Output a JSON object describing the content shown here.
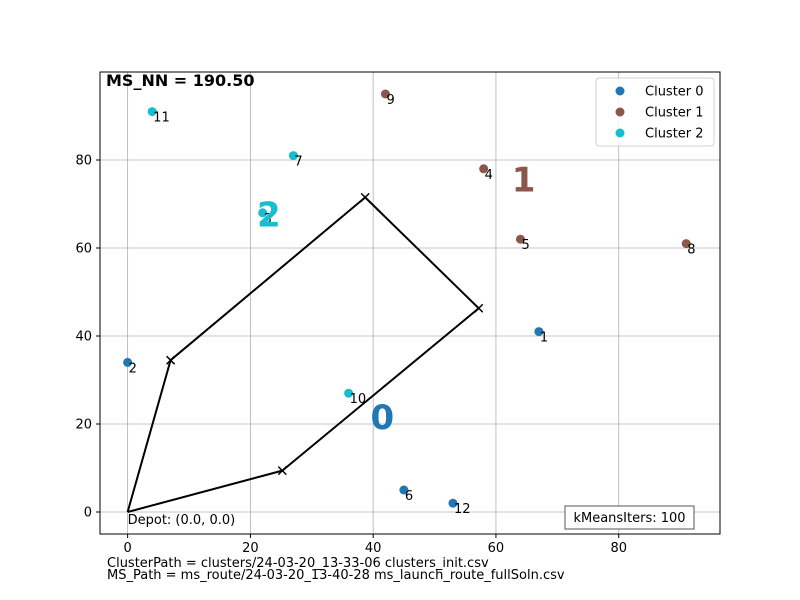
{
  "chart_data": {
    "type": "scatter",
    "title": "",
    "xlabel": "",
    "ylabel": "",
    "xlim": [
      -4.5,
      96.5
    ],
    "ylim": [
      -5,
      100
    ],
    "xticks": [
      0,
      20,
      40,
      60,
      80
    ],
    "yticks": [
      0,
      20,
      40,
      60,
      80
    ],
    "grid": true,
    "legend_position": "top-right",
    "series": [
      {
        "name": "Cluster 0",
        "color": "#1f77b4",
        "points": [
          {
            "x": 67,
            "y": 41,
            "label": "1"
          },
          {
            "x": 0,
            "y": 34,
            "label": "2"
          },
          {
            "x": 45,
            "y": 5,
            "label": "6"
          },
          {
            "x": 53,
            "y": 2,
            "label": "12"
          }
        ]
      },
      {
        "name": "Cluster 1",
        "color": "#8c564b",
        "points": [
          {
            "x": 58,
            "y": 78,
            "label": "4"
          },
          {
            "x": 64,
            "y": 62,
            "label": "5"
          },
          {
            "x": 91,
            "y": 61,
            "label": "8"
          },
          {
            "x": 42,
            "y": 95,
            "label": "9"
          }
        ]
      },
      {
        "name": "Cluster 2",
        "color": "#17becf",
        "points": [
          {
            "x": 22,
            "y": 68,
            "label": "3"
          },
          {
            "x": 27,
            "y": 81,
            "label": "7"
          },
          {
            "x": 36,
            "y": 27,
            "label": "10"
          },
          {
            "x": 4,
            "y": 91,
            "label": "11"
          }
        ]
      }
    ],
    "cluster_centroids": [
      {
        "label": "0",
        "x": 41.5,
        "y": 21,
        "color": "#1f77b4"
      },
      {
        "label": "1",
        "x": 64.5,
        "y": 75,
        "color": "#8c564b"
      },
      {
        "label": "2",
        "x": 23,
        "y": 67,
        "color": "#17becf"
      }
    ],
    "route": [
      {
        "x": 0,
        "y": 0
      },
      {
        "x": 7,
        "y": 34.5
      },
      {
        "x": 38.7,
        "y": 71.5
      },
      {
        "x": 57.2,
        "y": 46.3
      },
      {
        "x": 25.2,
        "y": 9.4
      },
      {
        "x": 0,
        "y": 0
      }
    ],
    "annotations": {
      "ms_nn": "MS_NN = 190.50",
      "depot": "Depot: (0.0, 0.0)",
      "kmeans_iters": "kMeansIters: 100"
    }
  },
  "footer": {
    "cluster_path": "ClusterPath = clusters/24-03-20_13-33-06 clusters_init.csv",
    "ms_path": "MS_Path = ms_route/24-03-20_13-40-28 ms_launch_route_fullSoln.csv"
  }
}
